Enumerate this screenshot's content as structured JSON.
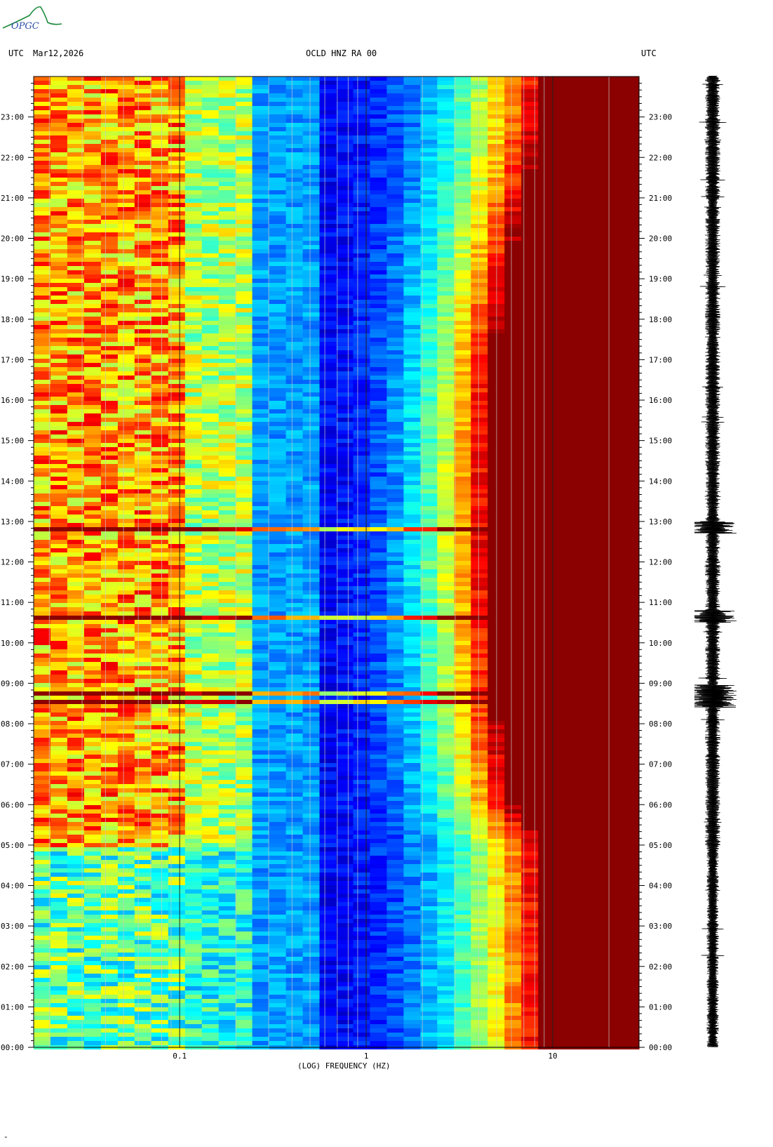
{
  "header": {
    "left_tz": "UTC",
    "date": "Mar12,2026",
    "station": "OCLD HNZ RA 00",
    "right_tz": "UTC"
  },
  "logo": {
    "text": "OPGC"
  },
  "corner_mark": "\"",
  "chart_data": {
    "type": "heatmap",
    "title": "OCLD HNZ RA 00",
    "xlabel": "(LOG) FREQUENCY (HZ)",
    "ylabel": "",
    "xscale": "log",
    "xlim": [
      0.0165,
      29
    ],
    "ylim_hours": [
      0,
      24
    ],
    "x_tick_labels": [
      "0.1",
      "1",
      "10"
    ],
    "x_tick_values": [
      0.1,
      1,
      10
    ],
    "y_tick_labels": [
      "00:00",
      "01:00",
      "02:00",
      "03:00",
      "04:00",
      "05:00",
      "06:00",
      "07:00",
      "08:00",
      "09:00",
      "10:00",
      "11:00",
      "12:00",
      "13:00",
      "14:00",
      "15:00",
      "16:00",
      "17:00",
      "18:00",
      "19:00",
      "20:00",
      "21:00",
      "22:00",
      "23:00"
    ],
    "colormap": [
      "#00008b",
      "#0000ff",
      "#0080ff",
      "#00ffff",
      "#80ff80",
      "#ffff00",
      "#ff8000",
      "#ff0000",
      "#8b0000"
    ],
    "noise_edge_hz": [
      {
        "hour": 0,
        "hz": 8.0
      },
      {
        "hour": 5,
        "hz": 8.0
      },
      {
        "hour": 6,
        "hz": 5.5
      },
      {
        "hour": 8,
        "hz": 4.5
      },
      {
        "hour": 12,
        "hz": 4.0
      },
      {
        "hour": 17,
        "hz": 4.2
      },
      {
        "hour": 20,
        "hz": 5.5
      },
      {
        "hour": 22,
        "hz": 7.0
      },
      {
        "hour": 24,
        "hz": 8.0
      }
    ],
    "events_hours": [
      8.55,
      8.8,
      10.65,
      12.85
    ],
    "colors": {
      "background": "#ffffff",
      "axis": "#000000",
      "gridline": "#c8c8c8",
      "waveform": "#000000"
    }
  }
}
